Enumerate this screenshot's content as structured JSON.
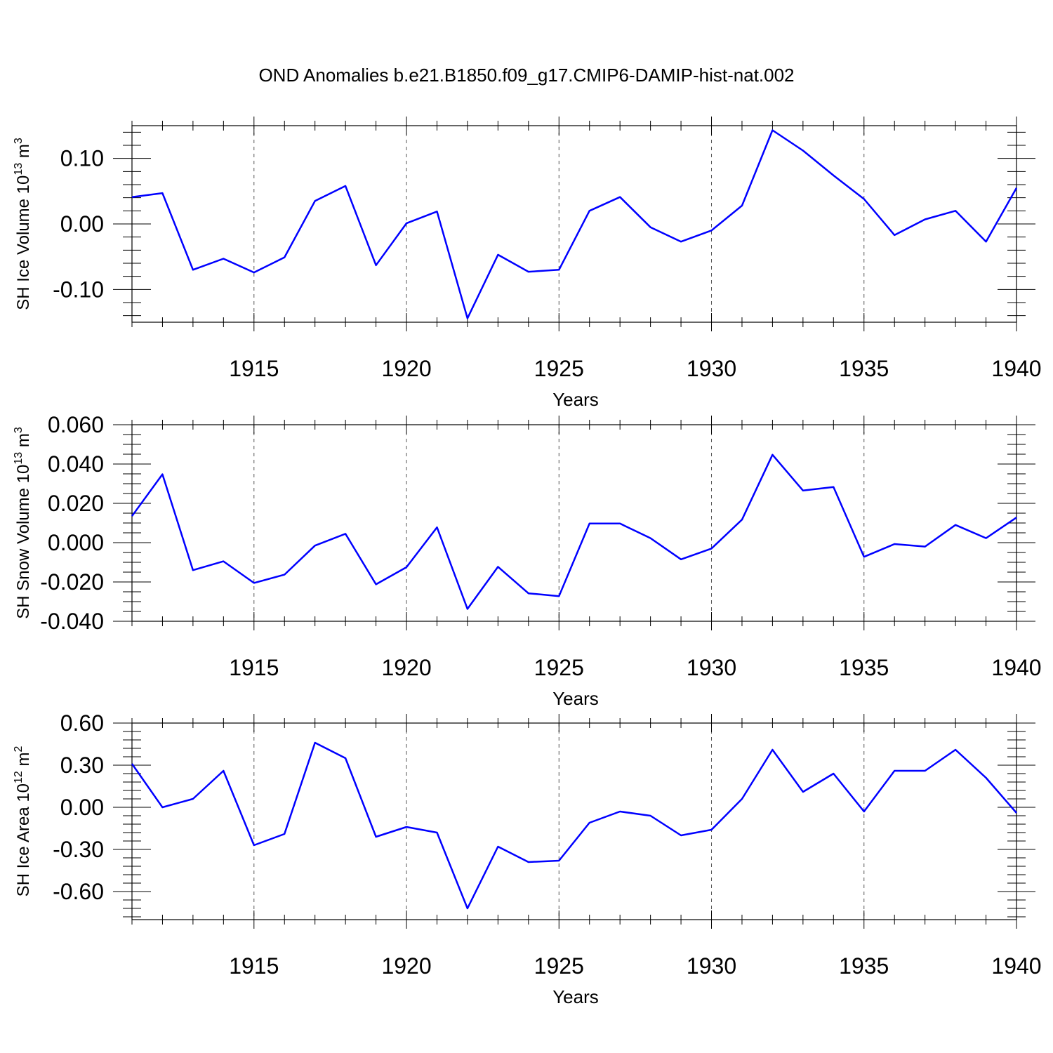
{
  "figure": {
    "title": "OND Anomalies b.e21.B1850.f09_g17.CMIP6-DAMIP-hist-nat.002",
    "line_color": "#0000ff",
    "axis_color": "#000000",
    "grid_color": "#555555"
  },
  "chart_data": [
    {
      "type": "line",
      "title": "OND Anomalies b.e21.B1850.f09_g17.CMIP6-DAMIP-hist-nat.002",
      "xlabel": "Years",
      "ylabel": {
        "base": "SH Ice Volume 10",
        "exp": "13",
        "unit": " m",
        "unit_exp": "3"
      },
      "xlim": [
        1911,
        1940
      ],
      "ylim": [
        -0.15,
        0.15
      ],
      "xticks": [
        1915,
        1920,
        1925,
        1930,
        1935,
        1940
      ],
      "yticks": [
        -0.1,
        0.0,
        0.1
      ],
      "ytick_labels": [
        "-0.10",
        "0.00",
        "0.10"
      ],
      "yminor": [
        -0.14,
        -0.12,
        -0.08,
        -0.06,
        -0.04,
        -0.02,
        0.02,
        0.04,
        0.06,
        0.08,
        0.12,
        0.14
      ],
      "grid": "vertical-dashed",
      "series": [
        {
          "name": "SH Ice Volume",
          "x": [
            1911,
            1912,
            1913,
            1914,
            1915,
            1916,
            1917,
            1918,
            1919,
            1920,
            1921,
            1922,
            1923,
            1924,
            1925,
            1926,
            1927,
            1928,
            1929,
            1930,
            1931,
            1932,
            1933,
            1934,
            1935,
            1936,
            1937,
            1938,
            1939,
            1940
          ],
          "values": [
            0.041,
            0.047,
            -0.07,
            -0.053,
            -0.074,
            -0.051,
            0.035,
            0.058,
            -0.063,
            0.001,
            0.019,
            -0.144,
            -0.047,
            -0.073,
            -0.07,
            0.02,
            0.041,
            -0.005,
            -0.027,
            -0.01,
            0.028,
            0.143,
            0.112,
            0.074,
            0.038,
            -0.017,
            0.007,
            0.02,
            -0.027,
            0.055
          ]
        }
      ]
    },
    {
      "type": "line",
      "xlabel": "Years",
      "ylabel": {
        "base": "SH Snow Volume 10",
        "exp": "13",
        "unit": " m",
        "unit_exp": "3"
      },
      "xlim": [
        1911,
        1940
      ],
      "ylim": [
        -0.04,
        0.06
      ],
      "xticks": [
        1915,
        1920,
        1925,
        1930,
        1935,
        1940
      ],
      "yticks": [
        -0.04,
        -0.02,
        0.0,
        0.02,
        0.04,
        0.06
      ],
      "ytick_labels": [
        "-0.040",
        "-0.020",
        "0.000",
        "0.020",
        "0.040",
        "0.060"
      ],
      "yminor": [
        -0.035,
        -0.03,
        -0.025,
        -0.015,
        -0.01,
        -0.005,
        0.005,
        0.01,
        0.015,
        0.025,
        0.03,
        0.035,
        0.045,
        0.05,
        0.055
      ],
      "grid": "vertical-dashed",
      "series": [
        {
          "name": "SH Snow Volume",
          "x": [
            1911,
            1912,
            1913,
            1914,
            1915,
            1916,
            1917,
            1918,
            1919,
            1920,
            1921,
            1922,
            1923,
            1924,
            1925,
            1926,
            1927,
            1928,
            1929,
            1930,
            1931,
            1932,
            1933,
            1934,
            1935,
            1936,
            1937,
            1938,
            1939,
            1940
          ],
          "values": [
            0.0135,
            0.0348,
            -0.014,
            -0.0095,
            -0.0205,
            -0.0163,
            -0.0015,
            0.0045,
            -0.0212,
            -0.0125,
            0.0078,
            -0.0337,
            -0.0123,
            -0.0258,
            -0.0272,
            0.0097,
            0.0097,
            0.0023,
            -0.0085,
            -0.003,
            0.0117,
            0.0447,
            0.0265,
            0.0283,
            -0.0072,
            -0.0007,
            -0.002,
            0.009,
            0.0023,
            0.0128
          ]
        }
      ]
    },
    {
      "type": "line",
      "xlabel": "Years",
      "ylabel": {
        "base": "SH Ice Area 10",
        "exp": "12",
        "unit": " m",
        "unit_exp": "2"
      },
      "xlim": [
        1911,
        1940
      ],
      "ylim": [
        -0.8,
        0.6
      ],
      "xticks": [
        1915,
        1920,
        1925,
        1930,
        1935,
        1940
      ],
      "yticks": [
        -0.6,
        -0.3,
        0.0,
        0.3,
        0.6
      ],
      "ytick_labels": [
        "-0.60",
        "-0.30",
        "0.00",
        "0.30",
        "0.60"
      ],
      "yminor": [
        -0.78,
        -0.72,
        -0.66,
        -0.54,
        -0.48,
        -0.42,
        -0.36,
        -0.24,
        -0.18,
        -0.12,
        -0.06,
        0.06,
        0.12,
        0.18,
        0.24,
        0.36,
        0.42,
        0.48,
        0.54
      ],
      "grid": "vertical-dashed",
      "series": [
        {
          "name": "SH Ice Area",
          "x": [
            1911,
            1912,
            1913,
            1914,
            1915,
            1916,
            1917,
            1918,
            1919,
            1920,
            1921,
            1922,
            1923,
            1924,
            1925,
            1926,
            1927,
            1928,
            1929,
            1930,
            1931,
            1932,
            1933,
            1934,
            1935,
            1936,
            1937,
            1938,
            1939,
            1940
          ],
          "values": [
            0.31,
            0.0,
            0.06,
            0.26,
            -0.27,
            -0.19,
            0.46,
            0.35,
            -0.21,
            -0.14,
            -0.18,
            -0.72,
            -0.28,
            -0.39,
            -0.38,
            -0.11,
            -0.03,
            -0.06,
            -0.2,
            -0.16,
            0.06,
            0.41,
            0.11,
            0.24,
            -0.03,
            0.26,
            0.26,
            0.41,
            0.21,
            -0.04
          ]
        }
      ]
    }
  ]
}
